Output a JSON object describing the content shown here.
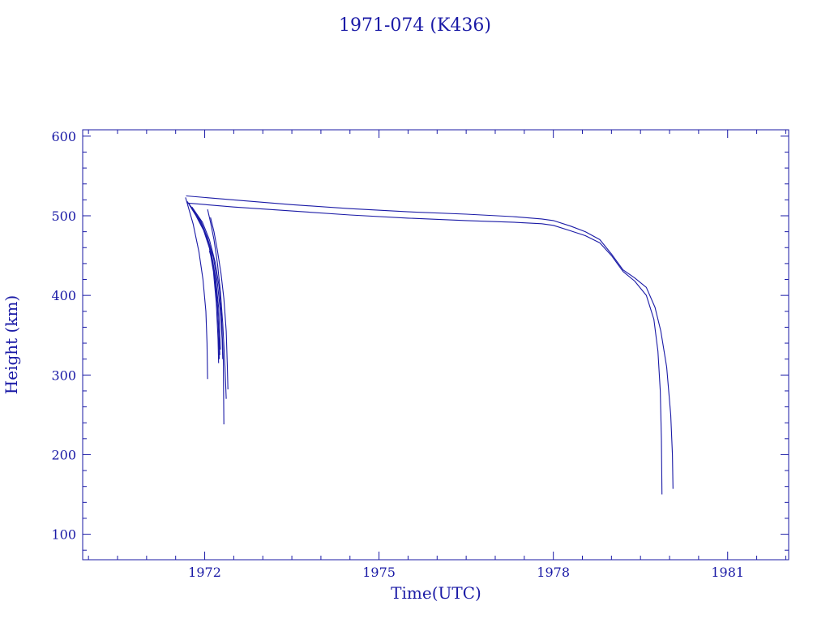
{
  "chart_data": {
    "type": "line",
    "title": "1971-074 (K436)",
    "xlabel": "Time(UTC)",
    "ylabel": "Height (km)",
    "xlim": [
      1969.9,
      1982.05
    ],
    "ylim": [
      68,
      608
    ],
    "x_ticks": [
      1972,
      1975,
      1978,
      1981
    ],
    "y_ticks": [
      100,
      200,
      300,
      400,
      500,
      600
    ],
    "grid": false,
    "color": "#1a1aa6",
    "series": [
      {
        "x": [
          1971.67,
          1971.8,
          1971.9,
          1971.97,
          1972.02,
          1972.04,
          1972.05
        ],
        "y": [
          523,
          490,
          455,
          420,
          380,
          340,
          295
        ]
      },
      {
        "x": [
          1971.7,
          1971.85,
          1971.98,
          1972.08,
          1972.15,
          1972.2,
          1972.23,
          1972.24
        ],
        "y": [
          518,
          500,
          482,
          460,
          430,
          390,
          345,
          315
        ]
      },
      {
        "x": [
          1971.72,
          1971.88,
          1972.0,
          1972.1,
          1972.17,
          1972.22,
          1972.25,
          1972.26
        ],
        "y": [
          516,
          498,
          480,
          455,
          425,
          385,
          345,
          325
        ]
      },
      {
        "x": [
          1971.74,
          1971.9,
          1972.02,
          1972.12,
          1972.19,
          1972.24,
          1972.26,
          1972.27
        ],
        "y": [
          514,
          496,
          476,
          452,
          420,
          385,
          350,
          332
        ]
      },
      {
        "x": [
          1971.76,
          1971.93,
          1972.05,
          1972.15,
          1972.22,
          1972.27,
          1972.3,
          1972.31
        ],
        "y": [
          512,
          494,
          472,
          448,
          415,
          380,
          345,
          320
        ]
      },
      {
        "x": [
          1971.78,
          1971.96,
          1972.08,
          1972.18,
          1972.25,
          1972.29,
          1972.32,
          1972.33
        ],
        "y": [
          511,
          492,
          470,
          442,
          410,
          372,
          320,
          238
        ]
      },
      {
        "x": [
          1972.05,
          1972.1,
          1972.16,
          1972.22,
          1972.27,
          1972.31,
          1972.35,
          1972.37
        ],
        "y": [
          508,
          492,
          470,
          440,
          405,
          365,
          310,
          270
        ]
      },
      {
        "x": [
          1972.1,
          1972.16,
          1972.22,
          1972.28,
          1972.33,
          1972.37,
          1972.39,
          1972.4
        ],
        "y": [
          498,
          480,
          456,
          428,
          396,
          355,
          310,
          282
        ]
      },
      {
        "x": [
          1972.08,
          1972.13,
          1972.18,
          1972.22,
          1972.24,
          1972.25
        ],
        "y": [
          456,
          444,
          420,
          388,
          352,
          320
        ]
      },
      {
        "x": [
          1971.68,
          1972.5,
          1973.5,
          1974.5,
          1975.5,
          1976.5,
          1977.3,
          1977.8,
          1978.0,
          1978.3,
          1978.55,
          1978.8,
          1979.0,
          1979.2,
          1979.4,
          1979.6,
          1979.75,
          1979.85,
          1979.95,
          1980.02,
          1980.05,
          1980.06
        ],
        "y": [
          525,
          520,
          514,
          509,
          505,
          502,
          499,
          496,
          494,
          487,
          480,
          470,
          452,
          432,
          422,
          410,
          385,
          355,
          310,
          250,
          200,
          157
        ]
      },
      {
        "x": [
          1971.7,
          1972.5,
          1973.5,
          1974.5,
          1975.5,
          1976.5,
          1977.3,
          1977.8,
          1978.0,
          1978.3,
          1978.55,
          1978.8,
          1979.0,
          1979.2,
          1979.4,
          1979.6,
          1979.73,
          1979.8,
          1979.84,
          1979.86,
          1979.87
        ],
        "y": [
          516,
          511,
          506,
          501,
          497,
          494,
          492,
          490,
          488,
          481,
          475,
          466,
          450,
          430,
          418,
          400,
          370,
          330,
          280,
          220,
          150
        ]
      }
    ]
  }
}
